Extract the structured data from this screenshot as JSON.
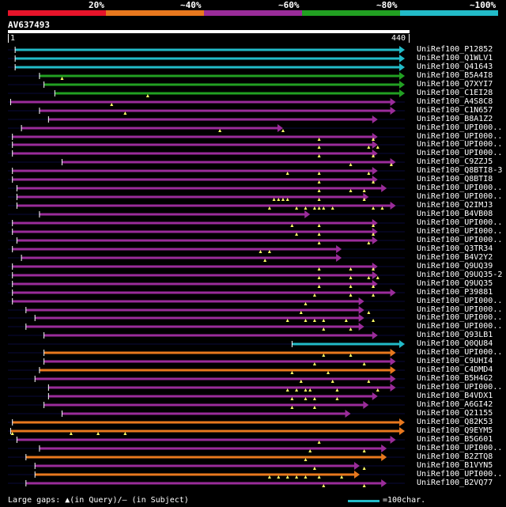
{
  "scale": {
    "labels": [
      "20%",
      "~40%",
      "~60%",
      "~80%",
      "~100%"
    ],
    "colors": [
      "#e8142a",
      "#e8781e",
      "#9a2c9a",
      "#22a022",
      "#22bbc8"
    ]
  },
  "query": {
    "name": "AV637493",
    "start": "1",
    "end": "440",
    "length": 440
  },
  "footer": {
    "gaps_text": "Large gaps: ▲(in Query)/— (in Subject)",
    "legend_text": "=100char."
  },
  "hits": [
    {
      "name": "UniRef100_P12852",
      "color": "#22bbc8",
      "start": 8,
      "end": 440,
      "marks": []
    },
    {
      "name": "UniRef100_Q1WLV1",
      "color": "#22bbc8",
      "start": 8,
      "end": 440,
      "marks": []
    },
    {
      "name": "UniRef100_Q41643",
      "color": "#22bbc8",
      "start": 8,
      "end": 440,
      "marks": []
    },
    {
      "name": "UniRef100_B5A4I8",
      "color": "#22a022",
      "start": 35,
      "end": 440,
      "marks": [
        60
      ]
    },
    {
      "name": "UniRef100_Q7XYI7",
      "color": "#22a022",
      "start": 40,
      "end": 440,
      "marks": []
    },
    {
      "name": "UniRef100_C1EI28",
      "color": "#22a022",
      "start": 52,
      "end": 440,
      "marks": [
        155
      ]
    },
    {
      "name": "UniRef100_A4S8C8",
      "color": "#9a2c9a",
      "start": 3,
      "end": 430,
      "marks": [
        115
      ]
    },
    {
      "name": "UniRef100_C1N657",
      "color": "#9a2c9a",
      "start": 35,
      "end": 430,
      "marks": [
        130
      ]
    },
    {
      "name": "UniRef100_B8A1Z2",
      "color": "#9a2c9a",
      "start": 45,
      "end": 410,
      "marks": []
    },
    {
      "name": "UniRef100_UPI000..",
      "color": "#9a2c9a",
      "start": 15,
      "end": 305,
      "marks": [
        235,
        305
      ]
    },
    {
      "name": "UniRef100_UPI000..",
      "color": "#9a2c9a",
      "start": 5,
      "end": 410,
      "marks": [
        345,
        405
      ]
    },
    {
      "name": "UniRef100_UPI000..",
      "color": "#9a2c9a",
      "start": 5,
      "end": 410,
      "marks": [
        345,
        400,
        410
      ]
    },
    {
      "name": "UniRef100_UPI000..",
      "color": "#9a2c9a",
      "start": 5,
      "end": 410,
      "marks": [
        345,
        405
      ]
    },
    {
      "name": "UniRef100_C9ZZJ5",
      "color": "#9a2c9a",
      "start": 60,
      "end": 430,
      "marks": [
        380,
        425
      ]
    },
    {
      "name": "UniRef100_Q8BTI8-3",
      "color": "#9a2c9a",
      "start": 5,
      "end": 410,
      "marks": [
        310,
        345,
        400
      ]
    },
    {
      "name": "UniRef100_Q8BTI8",
      "color": "#9a2c9a",
      "start": 5,
      "end": 410,
      "marks": [
        345,
        405
      ]
    },
    {
      "name": "UniRef100_UPI000..",
      "color": "#9a2c9a",
      "start": 10,
      "end": 420,
      "marks": [
        345,
        380,
        395
      ]
    },
    {
      "name": "UniRef100_UPI000..",
      "color": "#9a2c9a",
      "start": 10,
      "end": 400,
      "marks": [
        295,
        300,
        305,
        310,
        345,
        395
      ]
    },
    {
      "name": "UniRef100_Q2IMJ3",
      "color": "#9a2c9a",
      "start": 10,
      "end": 430,
      "marks": [
        290,
        320,
        330,
        340,
        345,
        350,
        360,
        405,
        415
      ]
    },
    {
      "name": "UniRef100_B4VB08",
      "color": "#9a2c9a",
      "start": 35,
      "end": 335,
      "marks": []
    },
    {
      "name": "UniRef100_UPI000..",
      "color": "#9a2c9a",
      "start": 5,
      "end": 410,
      "marks": [
        315,
        345,
        405
      ]
    },
    {
      "name": "UniRef100_UPI000..",
      "color": "#9a2c9a",
      "start": 5,
      "end": 410,
      "marks": [
        320,
        345,
        405
      ]
    },
    {
      "name": "UniRef100_UPI000..",
      "color": "#9a2c9a",
      "start": 10,
      "end": 410,
      "marks": [
        345,
        400
      ]
    },
    {
      "name": "UniRef100_Q3TR34",
      "color": "#9a2c9a",
      "start": 5,
      "end": 370,
      "marks": [
        280,
        290
      ]
    },
    {
      "name": "UniRef100_B4V2Y2",
      "color": "#9a2c9a",
      "start": 15,
      "end": 370,
      "marks": [
        285
      ]
    },
    {
      "name": "UniRef100_Q9UQ39",
      "color": "#9a2c9a",
      "start": 5,
      "end": 410,
      "marks": [
        345,
        380,
        405
      ]
    },
    {
      "name": "UniRef100_Q9UQ35-2",
      "color": "#9a2c9a",
      "start": 5,
      "end": 410,
      "marks": [
        345,
        380,
        400,
        410
      ]
    },
    {
      "name": "UniRef100_Q9UQ35",
      "color": "#9a2c9a",
      "start": 5,
      "end": 410,
      "marks": [
        345,
        380,
        405
      ]
    },
    {
      "name": "UniRef100_P39881",
      "color": "#9a2c9a",
      "start": 5,
      "end": 430,
      "marks": [
        340,
        380,
        405
      ]
    },
    {
      "name": "UniRef100_UPI000..",
      "color": "#9a2c9a",
      "start": 5,
      "end": 395,
      "marks": [
        330
      ]
    },
    {
      "name": "UniRef100_UPI000..",
      "color": "#9a2c9a",
      "start": 20,
      "end": 395,
      "marks": [
        325,
        400
      ]
    },
    {
      "name": "UniRef100_UPI000..",
      "color": "#9a2c9a",
      "start": 30,
      "end": 395,
      "marks": [
        310,
        330,
        340,
        350,
        375,
        405
      ]
    },
    {
      "name": "UniRef100_UPI000..",
      "color": "#9a2c9a",
      "start": 20,
      "end": 395,
      "marks": [
        350,
        380
      ]
    },
    {
      "name": "UniRef100_Q93LB1",
      "color": "#9a2c9a",
      "start": 40,
      "end": 410,
      "marks": []
    },
    {
      "name": "UniRef100_Q0QU84",
      "color": "#22bbc8",
      "start": 315,
      "end": 440,
      "marks": []
    },
    {
      "name": "UniRef100_UPI000..",
      "color": "#e8781e",
      "start": 40,
      "end": 430,
      "marks": [
        350,
        380
      ]
    },
    {
      "name": "UniRef100_C9UHI4",
      "color": "#9a2c9a",
      "start": 40,
      "end": 430,
      "marks": [
        340,
        395
      ]
    },
    {
      "name": "UniRef100_C4DMD4",
      "color": "#e8781e",
      "start": 35,
      "end": 430,
      "marks": [
        315,
        355
      ]
    },
    {
      "name": "UniRef100_B5H4G2",
      "color": "#9a2c9a",
      "start": 30,
      "end": 430,
      "marks": [
        325,
        360,
        400
      ]
    },
    {
      "name": "UniRef100_UPI000..",
      "color": "#9a2c9a",
      "start": 45,
      "end": 430,
      "marks": [
        310,
        320,
        330,
        335,
        365,
        410
      ]
    },
    {
      "name": "UniRef100_B4VDX1",
      "color": "#9a2c9a",
      "start": 45,
      "end": 410,
      "marks": [
        315,
        330,
        340,
        365
      ]
    },
    {
      "name": "UniRef100_A6GI42",
      "color": "#9a2c9a",
      "start": 40,
      "end": 400,
      "marks": [
        315,
        340
      ]
    },
    {
      "name": "UniRef100_Q21155",
      "color": "#9a2c9a",
      "start": 60,
      "end": 380,
      "marks": []
    },
    {
      "name": "UniRef100_Q82K53",
      "color": "#e8781e",
      "start": 5,
      "end": 440,
      "marks": []
    },
    {
      "name": "UniRef100_Q9EYM5",
      "color": "#e8781e",
      "start": 3,
      "end": 440,
      "marks": [
        5,
        70,
        100,
        130
      ]
    },
    {
      "name": "UniRef100_B5G601",
      "color": "#9a2c9a",
      "start": 10,
      "end": 430,
      "marks": [
        345
      ]
    },
    {
      "name": "UniRef100_UPI000..",
      "color": "#9a2c9a",
      "start": 35,
      "end": 420,
      "marks": [
        335,
        395
      ]
    },
    {
      "name": "UniRef100_B2ZTQ8",
      "color": "#e8781e",
      "start": 20,
      "end": 420,
      "marks": [
        330
      ]
    },
    {
      "name": "UniRef100_B1VYN5",
      "color": "#9a2c9a",
      "start": 30,
      "end": 390,
      "marks": [
        340,
        395
      ]
    },
    {
      "name": "UniRef100_UPI000..",
      "color": "#e8781e",
      "start": 30,
      "end": 390,
      "marks": [
        290,
        300,
        310,
        320,
        330,
        345,
        370
      ]
    },
    {
      "name": "UniRef100_B2VQ77",
      "color": "#9a2c9a",
      "start": 20,
      "end": 420,
      "marks": [
        350,
        395
      ]
    }
  ]
}
